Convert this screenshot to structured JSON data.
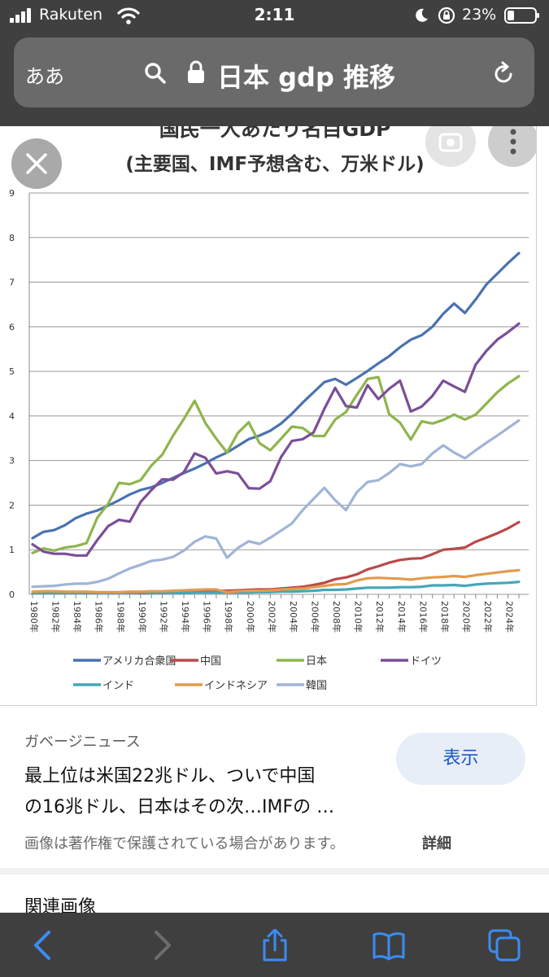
{
  "status_bar": {
    "carrier": "Rakuten",
    "time": "2:11",
    "battery_percent": "23%"
  },
  "browser": {
    "text_size_button": "ああ",
    "search_query": "日本 gdp 推移"
  },
  "chart_data": {
    "type": "line",
    "title": "国民一人あたり名目GDP",
    "subtitle": "(主要国、IMF予想含む、万米ドル)",
    "xlabel": "",
    "ylabel": "",
    "ylim": [
      0,
      9
    ],
    "yticks": [
      "0",
      "1",
      "2",
      "3",
      "4",
      "5",
      "6",
      "7",
      "8",
      "9"
    ],
    "x": [
      1980,
      1981,
      1982,
      1983,
      1984,
      1985,
      1986,
      1987,
      1988,
      1989,
      1990,
      1991,
      1992,
      1993,
      1994,
      1995,
      1996,
      1997,
      1998,
      1999,
      2000,
      2001,
      2002,
      2003,
      2004,
      2005,
      2006,
      2007,
      2008,
      2009,
      2010,
      2011,
      2012,
      2013,
      2014,
      2015,
      2016,
      2017,
      2018,
      2019,
      2020,
      2021,
      2022,
      2023,
      2024,
      2025
    ],
    "xtick_labels": [
      "1980年",
      "1982年",
      "1984年",
      "1986年",
      "1988年",
      "1990年",
      "1992年",
      "1994年",
      "1996年",
      "1998年",
      "2000年",
      "2002年",
      "2004年",
      "2006年",
      "2008年",
      "2010年",
      "2012年",
      "2014年",
      "2016年",
      "2018年",
      "2020年",
      "2022年",
      "2024年"
    ],
    "grid": true,
    "legend_position": "bottom",
    "series": [
      {
        "name": "アメリカ合衆国",
        "color": "#4a72b0",
        "values": [
          1.26,
          1.4,
          1.44,
          1.55,
          1.71,
          1.81,
          1.88,
          1.99,
          2.11,
          2.24,
          2.34,
          2.4,
          2.5,
          2.61,
          2.72,
          2.82,
          2.94,
          3.07,
          3.18,
          3.33,
          3.48,
          3.56,
          3.67,
          3.83,
          4.05,
          4.3,
          4.53,
          4.76,
          4.83,
          4.7,
          4.85,
          5.01,
          5.18,
          5.34,
          5.54,
          5.71,
          5.81,
          6.0,
          6.29,
          6.52,
          6.31,
          6.61,
          6.95,
          7.19,
          7.43,
          7.65
        ]
      },
      {
        "name": "中国",
        "color": "#b84a48",
        "values": [
          0.03,
          0.03,
          0.03,
          0.03,
          0.03,
          0.03,
          0.03,
          0.03,
          0.04,
          0.04,
          0.03,
          0.03,
          0.04,
          0.05,
          0.05,
          0.06,
          0.07,
          0.08,
          0.08,
          0.09,
          0.1,
          0.11,
          0.11,
          0.13,
          0.15,
          0.17,
          0.21,
          0.26,
          0.34,
          0.38,
          0.45,
          0.56,
          0.63,
          0.71,
          0.77,
          0.8,
          0.81,
          0.9,
          1.0,
          1.02,
          1.05,
          1.18,
          1.27,
          1.37,
          1.48,
          1.62
        ]
      },
      {
        "name": "日本",
        "color": "#8eb54c",
        "values": [
          0.93,
          1.03,
          0.98,
          1.05,
          1.08,
          1.15,
          1.72,
          2.03,
          2.5,
          2.47,
          2.56,
          2.89,
          3.13,
          3.56,
          3.93,
          4.34,
          3.84,
          3.49,
          3.18,
          3.62,
          3.86,
          3.39,
          3.23,
          3.49,
          3.76,
          3.73,
          3.55,
          3.55,
          3.92,
          4.09,
          4.47,
          4.83,
          4.87,
          4.04,
          3.85,
          3.47,
          3.88,
          3.83,
          3.91,
          4.03,
          3.92,
          4.03,
          4.28,
          4.53,
          4.73,
          4.89
        ]
      },
      {
        "name": "ドイツ",
        "color": "#7a4e98",
        "values": [
          1.12,
          0.96,
          0.91,
          0.91,
          0.87,
          0.87,
          1.22,
          1.53,
          1.67,
          1.63,
          2.07,
          2.34,
          2.58,
          2.57,
          2.74,
          3.16,
          3.06,
          2.71,
          2.76,
          2.71,
          2.38,
          2.37,
          2.54,
          3.08,
          3.44,
          3.48,
          3.63,
          4.16,
          4.63,
          4.22,
          4.19,
          4.69,
          4.38,
          4.61,
          4.79,
          4.1,
          4.21,
          4.45,
          4.79,
          4.66,
          4.54,
          5.15,
          5.46,
          5.71,
          5.88,
          6.07
        ]
      },
      {
        "name": "インド",
        "color": "#45a6b8",
        "values": [
          0.03,
          0.03,
          0.03,
          0.03,
          0.03,
          0.03,
          0.03,
          0.03,
          0.04,
          0.04,
          0.04,
          0.03,
          0.03,
          0.03,
          0.03,
          0.04,
          0.04,
          0.04,
          0.04,
          0.04,
          0.04,
          0.05,
          0.05,
          0.06,
          0.06,
          0.07,
          0.08,
          0.1,
          0.1,
          0.11,
          0.13,
          0.15,
          0.15,
          0.15,
          0.16,
          0.16,
          0.17,
          0.2,
          0.2,
          0.21,
          0.19,
          0.22,
          0.24,
          0.25,
          0.26,
          0.28
        ]
      },
      {
        "name": "インドネシア",
        "color": "#e29b4e",
        "values": [
          0.06,
          0.07,
          0.07,
          0.06,
          0.06,
          0.06,
          0.05,
          0.05,
          0.05,
          0.06,
          0.06,
          0.07,
          0.07,
          0.08,
          0.09,
          0.1,
          0.11,
          0.11,
          0.05,
          0.07,
          0.08,
          0.08,
          0.09,
          0.11,
          0.12,
          0.13,
          0.16,
          0.19,
          0.22,
          0.23,
          0.31,
          0.36,
          0.37,
          0.36,
          0.35,
          0.33,
          0.36,
          0.38,
          0.39,
          0.41,
          0.39,
          0.43,
          0.46,
          0.49,
          0.52,
          0.54
        ]
      },
      {
        "name": "韓国",
        "color": "#a0b4d6",
        "values": [
          0.17,
          0.18,
          0.19,
          0.22,
          0.24,
          0.24,
          0.28,
          0.35,
          0.47,
          0.58,
          0.66,
          0.75,
          0.78,
          0.84,
          0.98,
          1.18,
          1.3,
          1.25,
          0.82,
          1.04,
          1.19,
          1.13,
          1.27,
          1.43,
          1.59,
          1.89,
          2.14,
          2.39,
          2.11,
          1.89,
          2.29,
          2.52,
          2.56,
          2.72,
          2.92,
          2.87,
          2.92,
          3.16,
          3.34,
          3.18,
          3.05,
          3.23,
          3.4,
          3.56,
          3.73,
          3.9
        ]
      }
    ]
  },
  "result": {
    "source": "ガベージニュース",
    "title_line1": "最上位は米国22兆ドル、ついで中国",
    "title_line2": "の16兆ドル、日本はその次…IMFの …",
    "show_button": "表示",
    "copyright_notice": "画像は著作権で保護されている場合があります。",
    "details_link": "詳細",
    "related_heading": "関連画像"
  },
  "icons": {
    "close": "close-icon",
    "lens": "lens-icon",
    "more": "more-icon",
    "back": "back-arrow-icon",
    "forward": "forward-arrow-icon",
    "share": "share-icon",
    "bookmarks": "book-icon",
    "tabs": "tabs-icon"
  },
  "colors": {
    "toolbar_bg": "#404040",
    "accent_blue": "#1a57c9"
  }
}
